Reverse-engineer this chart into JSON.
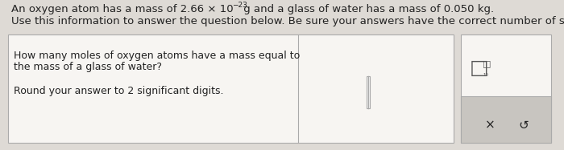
{
  "background_color": "#dedad5",
  "line1_main": "An oxygen atom has a mass of 2.66 × 10",
  "line1_exp": "−23",
  "line1_tail": " g and a glass of water has a mass of 0.050 kg.",
  "line2": "Use this information to answer the question below. Be sure your answers have the correct number of significant digits.",
  "q_line1": "How many moles of oxygen atoms have a mass equal to",
  "q_line2": "the mass of a glass of water?",
  "q_line3": "Round your answer to 2 significant digits.",
  "font_color": "#222222",
  "box_bg": "#f7f5f2",
  "box_border": "#aaaaaa",
  "right_box_bg": "#f7f5f2",
  "bottom_strip_bg": "#c8c5c0",
  "cursor_color": "#aaaaaa",
  "symbol_color": "#555555",
  "line1_fontsize": 9.5,
  "line2_fontsize": 9.5,
  "q_fontsize": 9.0,
  "small_fontsize": 8.0
}
